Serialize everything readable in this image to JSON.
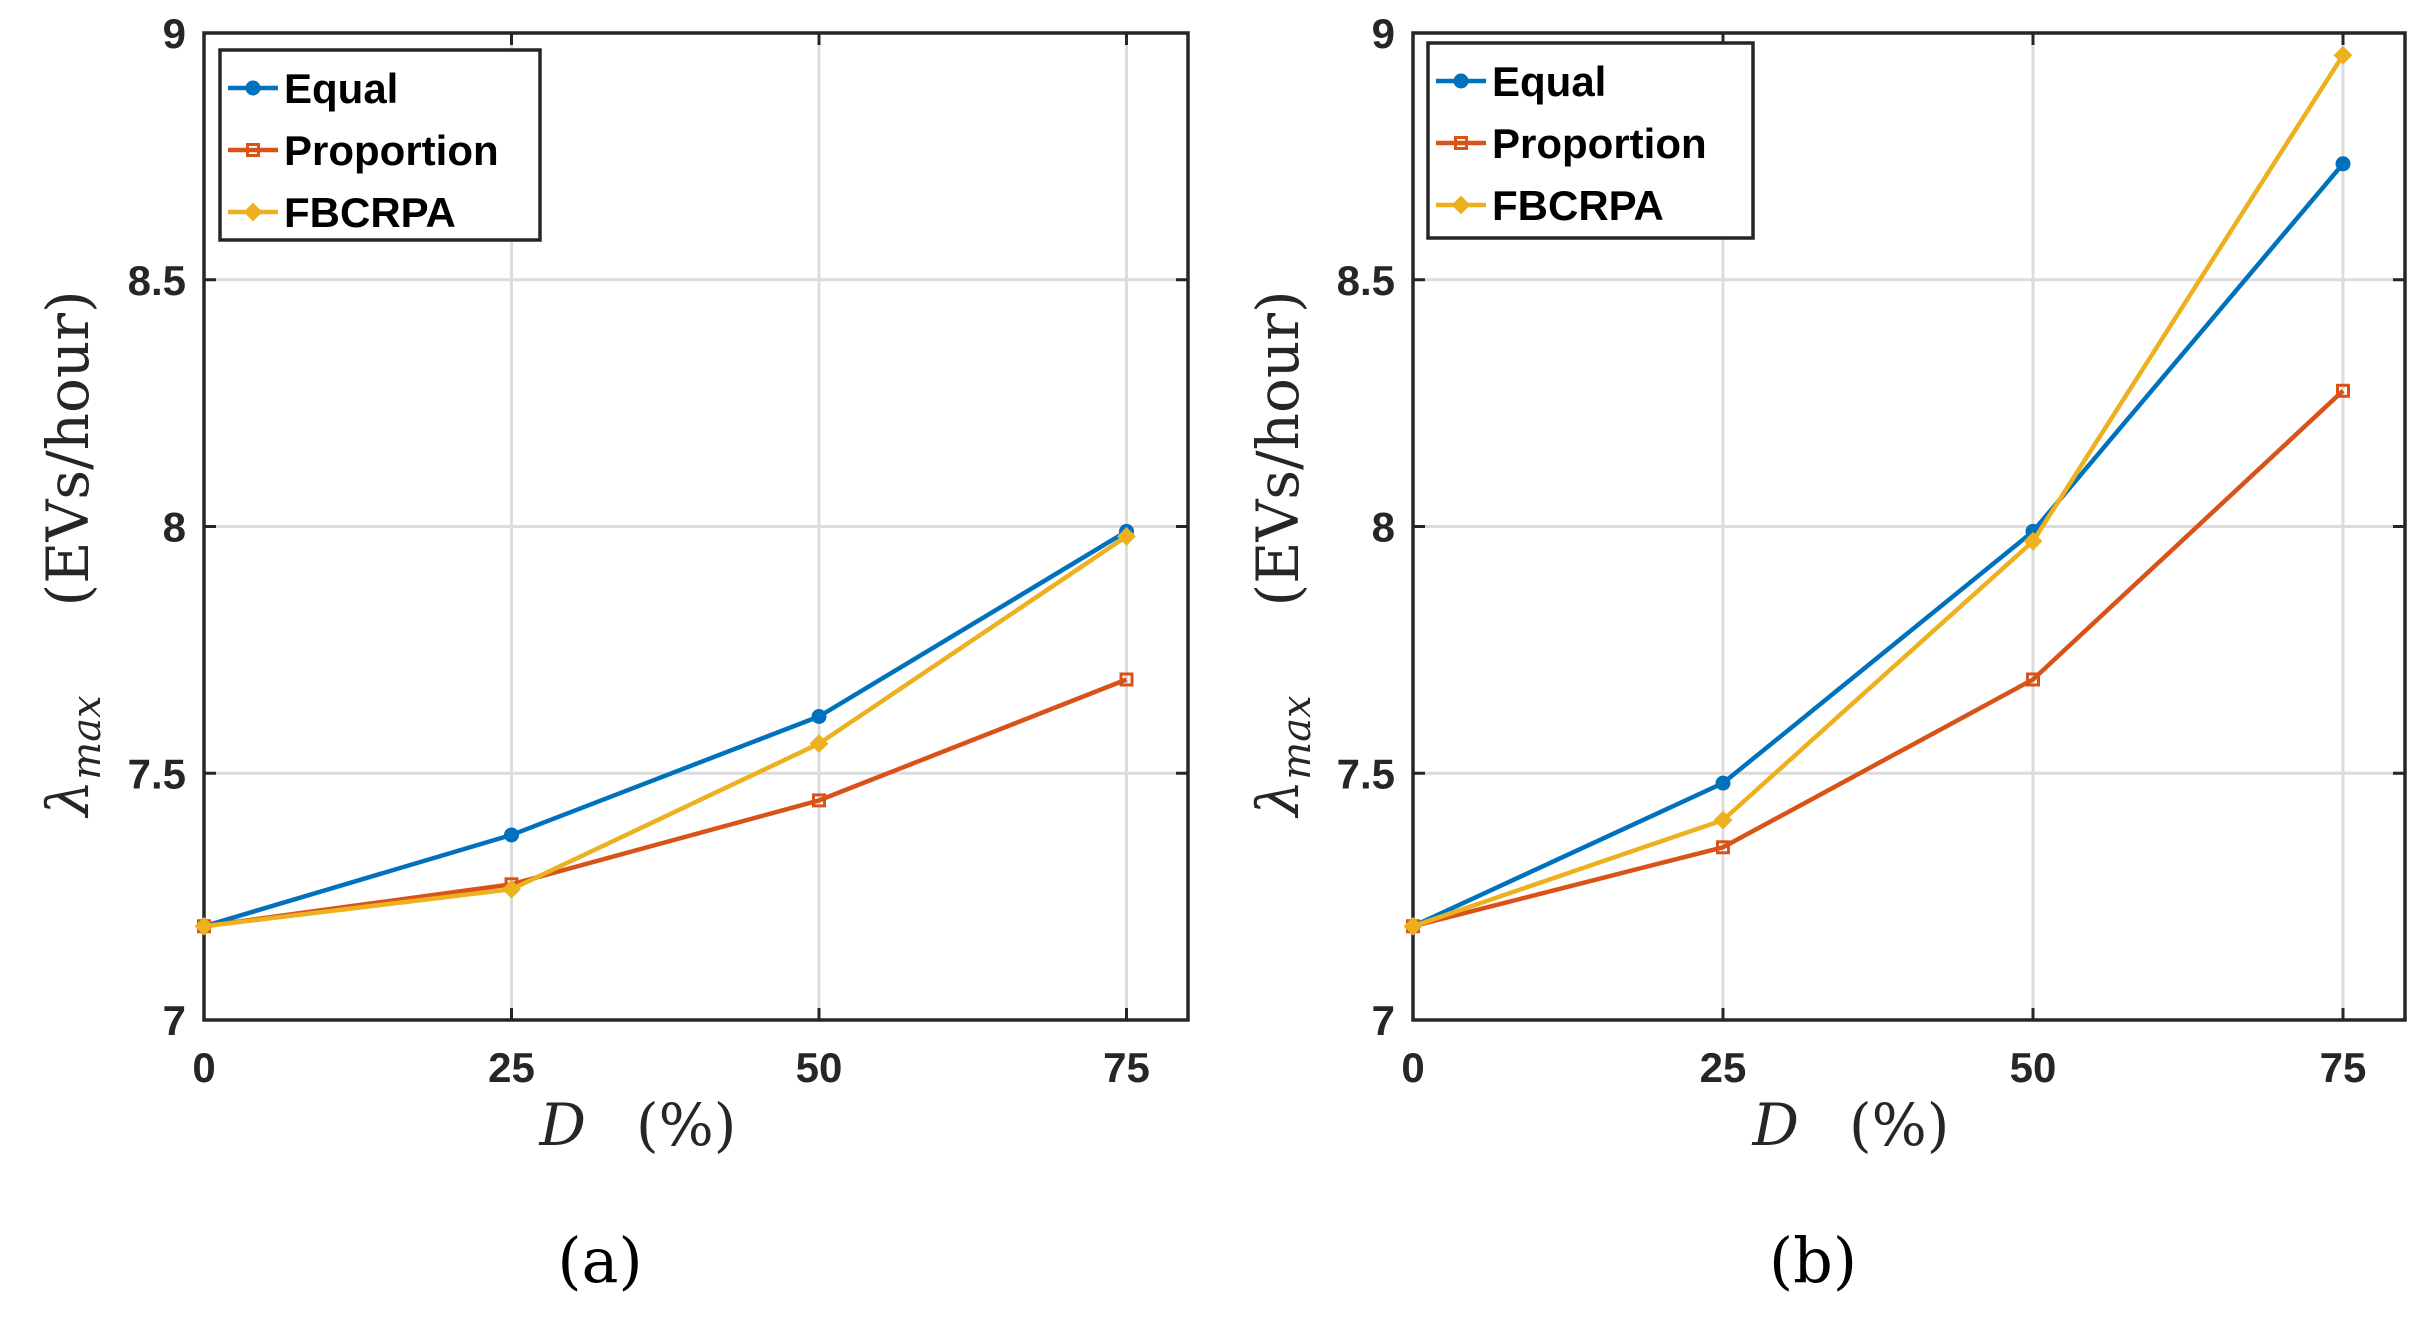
{
  "chart_data": [
    {
      "type": "line",
      "panel_label": "(a)",
      "xlabel": {
        "var": "D",
        "unit": "(%)"
      },
      "ylabel": {
        "var": "λ",
        "sub": "max",
        "unit": "(EVs/hour)"
      },
      "x": [
        0,
        25,
        50,
        75
      ],
      "xlim": [
        0,
        80
      ],
      "ylim": [
        7,
        9
      ],
      "xticks": [
        0,
        25,
        50,
        75
      ],
      "xtick_labels": [
        "0",
        "25",
        "50",
        "75"
      ],
      "yticks": [
        7,
        7.5,
        8,
        8.5,
        9
      ],
      "ytick_labels": [
        "7",
        "7.5",
        "8",
        "8.5",
        "9"
      ],
      "grid": true,
      "legend_position": "top-left",
      "series": [
        {
          "name": "Equal",
          "color": "#0072BD",
          "marker": "circle",
          "values": [
            7.19,
            7.375,
            7.615,
            7.99
          ]
        },
        {
          "name": "Proportion",
          "color": "#D95319",
          "marker": "square",
          "values": [
            7.19,
            7.275,
            7.445,
            7.69
          ]
        },
        {
          "name": "FBCRPA",
          "color": "#EDB120",
          "marker": "diamond",
          "values": [
            7.19,
            7.265,
            7.56,
            7.98
          ]
        }
      ]
    },
    {
      "type": "line",
      "panel_label": "(b)",
      "xlabel": {
        "var": "D",
        "unit": "(%)"
      },
      "ylabel": {
        "var": "λ",
        "sub": "max",
        "unit": "(EVs/hour)"
      },
      "x": [
        0,
        25,
        50,
        75
      ],
      "xlim": [
        0,
        80
      ],
      "ylim": [
        7,
        9
      ],
      "xticks": [
        0,
        25,
        50,
        75
      ],
      "xtick_labels": [
        "0",
        "25",
        "50",
        "75"
      ],
      "yticks": [
        7,
        7.5,
        8,
        8.5,
        9
      ],
      "ytick_labels": [
        "7",
        "7.5",
        "8",
        "8.5",
        "9"
      ],
      "grid": true,
      "legend_position": "top-left",
      "series": [
        {
          "name": "Equal",
          "color": "#0072BD",
          "marker": "circle",
          "values": [
            7.19,
            7.48,
            7.99,
            8.735
          ]
        },
        {
          "name": "Proportion",
          "color": "#D95319",
          "marker": "square",
          "values": [
            7.19,
            7.35,
            7.69,
            8.275
          ]
        },
        {
          "name": "FBCRPA",
          "color": "#EDB120",
          "marker": "diamond",
          "values": [
            7.19,
            7.405,
            7.97,
            8.955
          ]
        }
      ]
    }
  ]
}
